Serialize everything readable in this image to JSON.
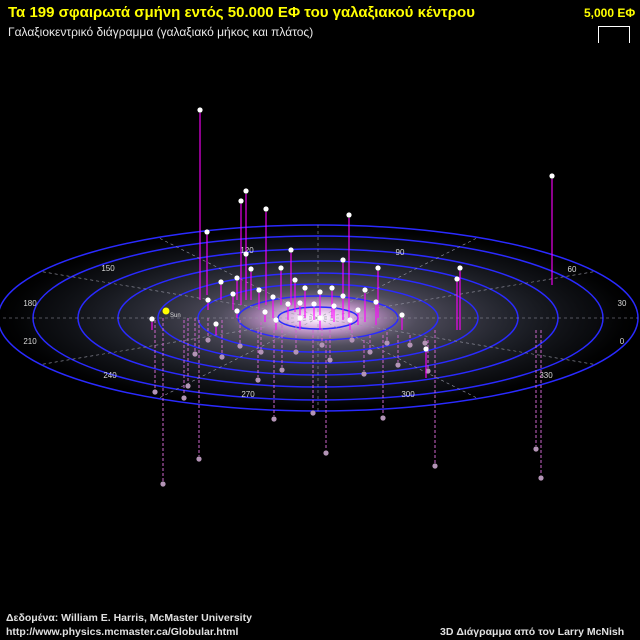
{
  "title": "Τα 199 σφαιρωτά σμήνη εντός 50.000 ΕΦ του γαλαξιακού κέντρου",
  "subtitle": "Γαλαξιοκεντρικό διάγραμμα (γαλαξιακό μήκος και πλάτος)",
  "scale_label": "5,000 ΕΦ",
  "credits": {
    "data_line": "Δεδομένα: William E. Harris, McMaster University",
    "url": "http://www.physics.mcmaster.ca/Globular.html",
    "author": "3D Διάγραμμα από τον Larry McNish"
  },
  "sun_label": "Sun",
  "longitude_labels": [
    "0",
    "30",
    "60",
    "90",
    "120",
    "150",
    "180",
    "210",
    "240",
    "270",
    "300",
    "330"
  ],
  "colors": {
    "title": "#ffff00",
    "rings": "#2a2aff",
    "above_plane": "#ff00ff",
    "below_plane": "#cc66cc",
    "cluster": "#ffffff",
    "sun": "#ffff00"
  }
}
